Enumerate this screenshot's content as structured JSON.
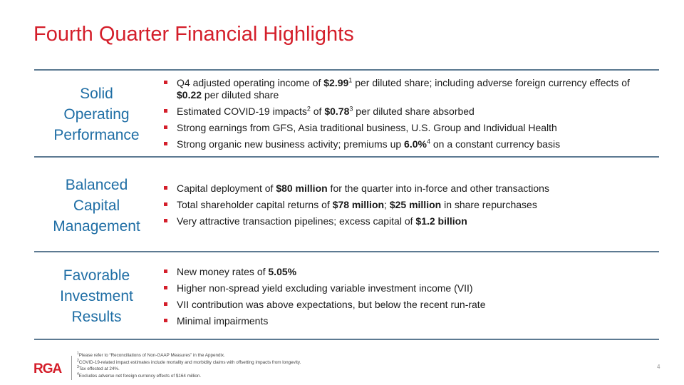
{
  "title": "Fourth Quarter Financial Highlights",
  "colors": {
    "title": "#d41e2a",
    "section_label": "#1f6ea5",
    "divider": "#5d7a92",
    "bullet": "#d41e2a"
  },
  "sections": [
    {
      "label_lines": [
        "Solid",
        "Operating",
        "Performance"
      ],
      "bullets": [
        {
          "parts": [
            {
              "t": "Q4 adjusted operating income of "
            },
            {
              "t": "$2.99",
              "b": true
            },
            {
              "t": "1",
              "sup": true
            },
            {
              "t": " per diluted share; including adverse foreign currency effects of "
            },
            {
              "t": "$0.22",
              "b": true
            },
            {
              "t": " per diluted share"
            }
          ]
        },
        {
          "parts": [
            {
              "t": "Estimated COVID-19 impacts"
            },
            {
              "t": "2",
              "sup": true
            },
            {
              "t": " of "
            },
            {
              "t": "$0.78",
              "b": true
            },
            {
              "t": "3",
              "sup": true
            },
            {
              "t": " per diluted share absorbed"
            }
          ]
        },
        {
          "parts": [
            {
              "t": "Strong earnings from GFS, Asia traditional business, U.S. Group and Individual Health"
            }
          ]
        },
        {
          "parts": [
            {
              "t": "Strong organic new business activity; premiums up "
            },
            {
              "t": "6.0%",
              "b": true
            },
            {
              "t": "4",
              "sup": true
            },
            {
              "t": " on a constant currency basis"
            }
          ]
        }
      ]
    },
    {
      "label_lines": [
        "Balanced",
        "Capital",
        "Management"
      ],
      "bullets": [
        {
          "parts": [
            {
              "t": "Capital deployment of "
            },
            {
              "t": "$80 million",
              "b": true
            },
            {
              "t": " for the quarter into in-force and other transactions"
            }
          ]
        },
        {
          "parts": [
            {
              "t": "Total shareholder capital returns of "
            },
            {
              "t": "$78 million",
              "b": true
            },
            {
              "t": "; "
            },
            {
              "t": "$25 million",
              "b": true
            },
            {
              "t": " in share repurchases"
            }
          ]
        },
        {
          "parts": [
            {
              "t": "Very attractive transaction pipelines; excess capital of "
            },
            {
              "t": "$1.2 billion",
              "b": true
            }
          ]
        }
      ]
    },
    {
      "label_lines": [
        "Favorable",
        "Investment",
        "Results"
      ],
      "bullets": [
        {
          "parts": [
            {
              "t": "New money rates of "
            },
            {
              "t": "5.05%",
              "b": true
            }
          ]
        },
        {
          "parts": [
            {
              "t": "Higher non-spread yield excluding variable investment income (VII)"
            }
          ]
        },
        {
          "parts": [
            {
              "t": "VII contribution was above expectations, but below the recent run-rate"
            }
          ]
        },
        {
          "parts": [
            {
              "t": "Minimal impairments"
            }
          ]
        }
      ]
    }
  ],
  "footer": {
    "logo_text": "RGA",
    "footnotes": [
      {
        "num": "1",
        "text": "Please refer to “Reconciliations of Non-GAAP Measures” in the Appendix."
      },
      {
        "num": "2",
        "text": "COVID-19-related impact estimates include mortality and morbidity claims with offsetting impacts from longevity."
      },
      {
        "num": "3",
        "text": "Tax effected at 24%."
      },
      {
        "num": "4",
        "text": "Excludes adverse net foreign currency effects of $164 million."
      }
    ],
    "page_number": "4"
  }
}
